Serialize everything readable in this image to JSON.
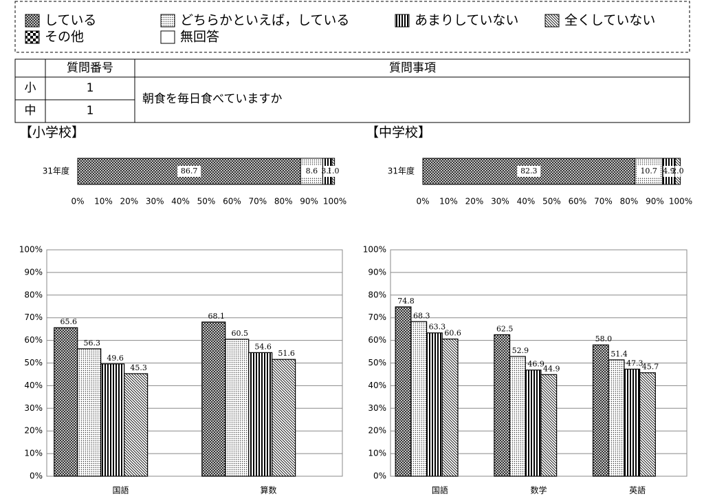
{
  "legend": {
    "items": [
      "している",
      "どちらかといえば，している",
      "あまりしていない",
      "全くしていない",
      "その他",
      "無回答"
    ]
  },
  "table": {
    "headers": [
      "質問番号",
      "質問事項"
    ],
    "rows": [
      [
        "小",
        1
      ],
      [
        "中",
        1
      ]
    ],
    "question": "朝食を毎日食べていますか"
  },
  "sections": [
    "【小学校】",
    "【中学校】"
  ],
  "chart_data": [
    {
      "type": "stacked_bar",
      "categories": [
        "31年度"
      ],
      "series": [
        {
          "values": [
            86.7
          ]
        },
        {
          "values": [
            8.6
          ]
        },
        {
          "values": [
            3.6
          ]
        },
        {
          "values": [
            1.0
          ],
          "value_labels": [
            "1.0"
          ]
        }
      ],
      "xlim": [
        0,
        100
      ],
      "xticks": [
        {
          "value": 0,
          "label": "0%"
        },
        {
          "value": 10,
          "label": "10%"
        },
        {
          "value": 20,
          "label": "20%"
        },
        {
          "value": 30,
          "label": "30%"
        },
        {
          "value": 40,
          "label": "40%"
        },
        {
          "value": 50,
          "label": "50%"
        },
        {
          "value": 60,
          "label": "60%"
        },
        {
          "value": 70,
          "label": "70%"
        },
        {
          "value": 80,
          "label": "80%"
        },
        {
          "value": 90,
          "label": "90%"
        },
        {
          "value": 100,
          "label": "100%"
        }
      ]
    },
    {
      "type": "stacked_bar",
      "categories": [
        "31年度"
      ],
      "series": [
        {
          "values": [
            82.3
          ]
        },
        {
          "values": [
            10.7
          ]
        },
        {
          "values": [
            4.9
          ]
        },
        {
          "values": [
            2.0
          ],
          "value_labels": [
            "2.0"
          ]
        }
      ],
      "xlim": [
        0,
        100
      ],
      "xticks": [
        {
          "value": 0,
          "label": "0%"
        },
        {
          "value": 10,
          "label": "10%"
        },
        {
          "value": 20,
          "label": "20%"
        },
        {
          "value": 30,
          "label": "30%"
        },
        {
          "value": 40,
          "label": "40%"
        },
        {
          "value": 50,
          "label": "50%"
        },
        {
          "value": 60,
          "label": "60%"
        },
        {
          "value": 70,
          "label": "70%"
        },
        {
          "value": 80,
          "label": "80%"
        },
        {
          "value": 90,
          "label": "90%"
        },
        {
          "value": 100,
          "label": "100%"
        }
      ]
    },
    {
      "type": "bar",
      "categories": [
        "国語",
        "算数"
      ],
      "series": [
        {
          "values": [
            65.6,
            68.1
          ]
        },
        {
          "values": [
            56.3,
            60.5
          ]
        },
        {
          "values": [
            49.6,
            54.6
          ]
        },
        {
          "values": [
            45.3,
            51.6
          ]
        }
      ],
      "ylim": [
        0,
        100
      ],
      "grid": true,
      "yticks": [
        {
          "value": 0,
          "label": "0%"
        },
        {
          "value": 10,
          "label": "10%"
        },
        {
          "value": 20,
          "label": "20%"
        },
        {
          "value": 30,
          "label": "30%"
        },
        {
          "value": 40,
          "label": "40%"
        },
        {
          "value": 50,
          "label": "50%"
        },
        {
          "value": 60,
          "label": "60%"
        },
        {
          "value": 70,
          "label": "70%"
        },
        {
          "value": 80,
          "label": "80%"
        },
        {
          "value": 90,
          "label": "90%"
        },
        {
          "value": 100,
          "label": "100%"
        }
      ]
    },
    {
      "type": "bar",
      "categories": [
        "国語",
        "数学",
        "英語"
      ],
      "series": [
        {
          "values": [
            74.8,
            62.5,
            58.0
          ],
          "value_labels": [
            "74.8",
            "62.5",
            "58.0"
          ]
        },
        {
          "values": [
            68.3,
            52.9,
            51.4
          ]
        },
        {
          "values": [
            63.3,
            46.9,
            47.3
          ]
        },
        {
          "values": [
            60.6,
            44.9,
            45.7
          ]
        }
      ],
      "ylim": [
        0,
        100
      ],
      "grid": true,
      "yticks": [
        {
          "value": 0,
          "label": "0%"
        },
        {
          "value": 10,
          "label": "10%"
        },
        {
          "value": 20,
          "label": "20%"
        },
        {
          "value": 30,
          "label": "30%"
        },
        {
          "value": 40,
          "label": "40%"
        },
        {
          "value": 50,
          "label": "50%"
        },
        {
          "value": 60,
          "label": "60%"
        },
        {
          "value": 70,
          "label": "70%"
        },
        {
          "value": 80,
          "label": "80%"
        },
        {
          "value": 90,
          "label": "90%"
        },
        {
          "value": 100,
          "label": "100%"
        }
      ]
    }
  ]
}
